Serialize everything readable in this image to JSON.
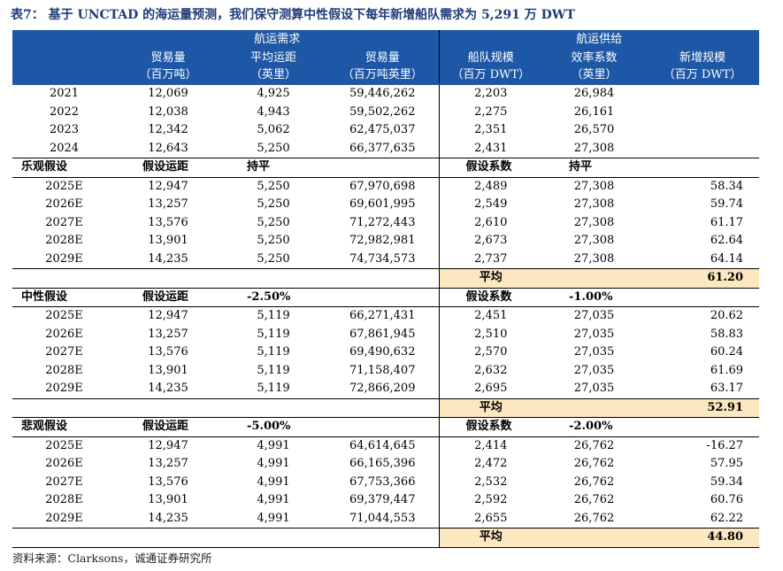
{
  "title": "表7： 基于 UNCTAD 的海运量预测，我们保守测算中性假设下每年新增船队需求为 5,291 万 DWT",
  "source": "资料来源：Clarksons，诚通证券研究所",
  "header": {
    "group_demand": "航运需求",
    "group_supply": "航运供给",
    "columns": [
      {
        "line1": "贸易量",
        "line2": "（百万吨）"
      },
      {
        "line1": "平均运距",
        "line2": "（英里）"
      },
      {
        "line1": "贸易量",
        "line2": "（百万吨英里）"
      },
      {
        "line1": "船队规模",
        "line2": "（百万 DWT）"
      },
      {
        "line1": "效率系数",
        "line2": "（英里）"
      },
      {
        "line1": "新增规模",
        "line2": "（百万 DWT）"
      }
    ]
  },
  "historical": [
    {
      "year": "2021",
      "v1": "12,069",
      "v2": "4,925",
      "v3": "59,446,262",
      "v4": "2,203",
      "v5": "26,984",
      "v6": ""
    },
    {
      "year": "2022",
      "v1": "12,038",
      "v2": "4,943",
      "v3": "59,502,262",
      "v4": "2,275",
      "v5": "26,161",
      "v6": ""
    },
    {
      "year": "2023",
      "v1": "12,342",
      "v2": "5,062",
      "v3": "62,475,037",
      "v4": "2,351",
      "v5": "26,570",
      "v6": ""
    },
    {
      "year": "2024",
      "v1": "12,643",
      "v2": "5,250",
      "v3": "66,377,635",
      "v4": "2,431",
      "v5": "27,308",
      "v6": ""
    }
  ],
  "scenarios": [
    {
      "label": "乐观假设",
      "dist_label": "假设运距",
      "dist_value": "持平",
      "coef_label": "假设系数",
      "coef_value": "持平",
      "rows": [
        {
          "year": "2025E",
          "v1": "12,947",
          "v2": "5,250",
          "v3": "67,970,698",
          "v4": "2,489",
          "v5": "27,308",
          "v6": "58.34"
        },
        {
          "year": "2026E",
          "v1": "13,257",
          "v2": "5,250",
          "v3": "69,601,995",
          "v4": "2,549",
          "v5": "27,308",
          "v6": "59.74"
        },
        {
          "year": "2027E",
          "v1": "13,576",
          "v2": "5,250",
          "v3": "71,272,443",
          "v4": "2,610",
          "v5": "27,308",
          "v6": "61.17"
        },
        {
          "year": "2028E",
          "v1": "13,901",
          "v2": "5,250",
          "v3": "72,982,981",
          "v4": "2,673",
          "v5": "27,308",
          "v6": "62.64"
        },
        {
          "year": "2029E",
          "v1": "14,235",
          "v2": "5,250",
          "v3": "74,734,573",
          "v4": "2,737",
          "v5": "27,308",
          "v6": "64.14"
        }
      ],
      "avg_label": "平均",
      "avg_value": "61.20"
    },
    {
      "label": "中性假设",
      "dist_label": "假设运距",
      "dist_value": "-2.50%",
      "coef_label": "假设系数",
      "coef_value": "-1.00%",
      "rows": [
        {
          "year": "2025E",
          "v1": "12,947",
          "v2": "5,119",
          "v3": "66,271,431",
          "v4": "2,451",
          "v5": "27,035",
          "v6": "20.62"
        },
        {
          "year": "2026E",
          "v1": "13,257",
          "v2": "5,119",
          "v3": "67,861,945",
          "v4": "2,510",
          "v5": "27,035",
          "v6": "58.83"
        },
        {
          "year": "2027E",
          "v1": "13,576",
          "v2": "5,119",
          "v3": "69,490,632",
          "v4": "2,570",
          "v5": "27,035",
          "v6": "60.24"
        },
        {
          "year": "2028E",
          "v1": "13,901",
          "v2": "5,119",
          "v3": "71,158,407",
          "v4": "2,632",
          "v5": "27,035",
          "v6": "61.69"
        },
        {
          "year": "2029E",
          "v1": "14,235",
          "v2": "5,119",
          "v3": "72,866,209",
          "v4": "2,695",
          "v5": "27,035",
          "v6": "63.17"
        }
      ],
      "avg_label": "平均",
      "avg_value": "52.91"
    },
    {
      "label": "悲观假设",
      "dist_label": "假设运距",
      "dist_value": "-5.00%",
      "coef_label": "假设系数",
      "coef_value": "-2.00%",
      "rows": [
        {
          "year": "2025E",
          "v1": "12,947",
          "v2": "4,991",
          "v3": "64,614,645",
          "v4": "2,414",
          "v5": "26,762",
          "v6": "-16.27"
        },
        {
          "year": "2026E",
          "v1": "13,257",
          "v2": "4,991",
          "v3": "66,165,396",
          "v4": "2,472",
          "v5": "26,762",
          "v6": "57.95"
        },
        {
          "year": "2027E",
          "v1": "13,576",
          "v2": "4,991",
          "v3": "67,753,366",
          "v4": "2,532",
          "v5": "26,762",
          "v6": "59.34"
        },
        {
          "year": "2028E",
          "v1": "13,901",
          "v2": "4,991",
          "v3": "69,379,447",
          "v4": "2,592",
          "v5": "26,762",
          "v6": "60.76"
        },
        {
          "year": "2029E",
          "v1": "14,235",
          "v2": "4,991",
          "v3": "71,044,553",
          "v4": "2,655",
          "v5": "26,762",
          "v6": "62.22"
        }
      ],
      "avg_label": "平均",
      "avg_value": "44.80"
    }
  ]
}
